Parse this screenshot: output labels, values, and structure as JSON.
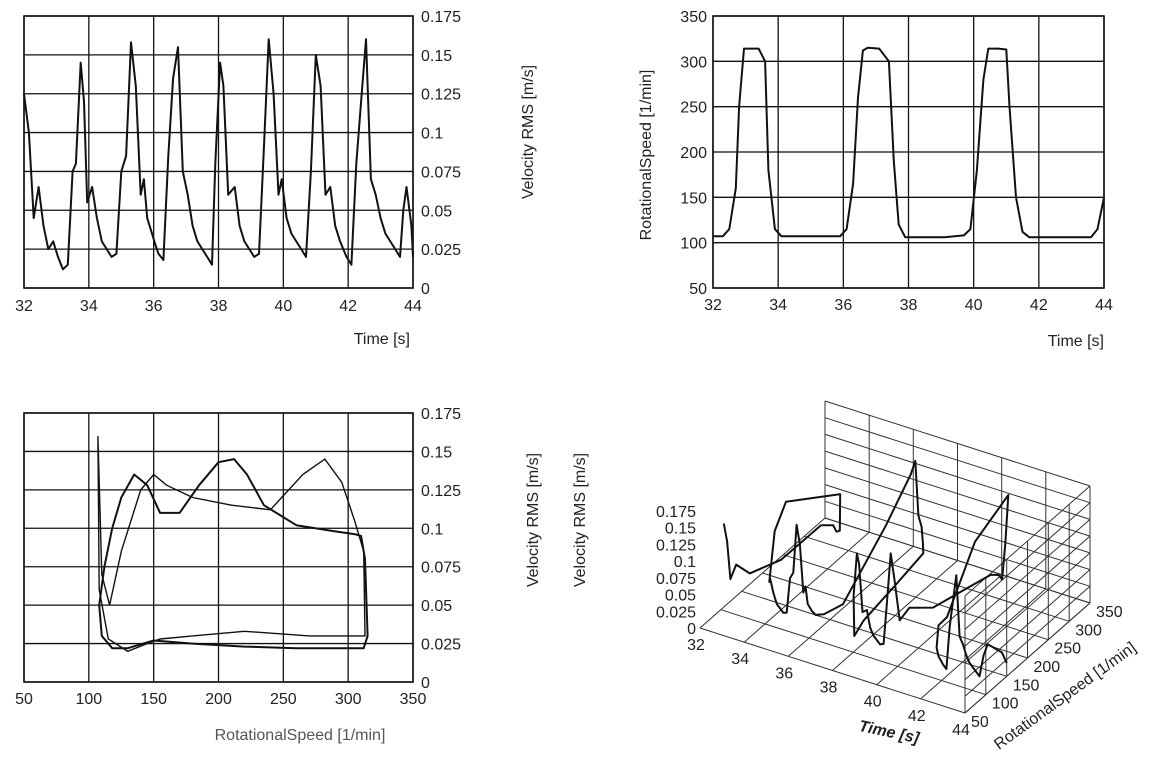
{
  "chart_data": [
    {
      "type": "line",
      "xlabel": "Time [s]",
      "ylabel": "Velocity RMS [m/s]",
      "xlim": [
        32,
        44
      ],
      "ylim": [
        0,
        0.175
      ],
      "xticks": [
        "32",
        "34",
        "36",
        "38",
        "40",
        "42",
        "44"
      ],
      "yticks": [
        "0",
        "0.025",
        "0.05",
        "0.075",
        "0.1",
        "0.125",
        "0.15",
        "0.175"
      ],
      "grid": true,
      "x": [
        32.0,
        32.15,
        32.3,
        32.45,
        32.6,
        32.75,
        32.9,
        33.05,
        33.2,
        33.35,
        33.5,
        33.6,
        33.75,
        33.85,
        33.95,
        34.1,
        34.25,
        34.4,
        34.55,
        34.7,
        34.85,
        35.0,
        35.15,
        35.3,
        35.45,
        35.6,
        35.7,
        35.8,
        35.95,
        36.05,
        36.15,
        36.3,
        36.45,
        36.6,
        36.75,
        36.9,
        37.05,
        37.2,
        37.35,
        37.5,
        37.65,
        37.8,
        37.9,
        38.05,
        38.15,
        38.3,
        38.5,
        38.65,
        38.8,
        38.95,
        39.1,
        39.25,
        39.4,
        39.55,
        39.7,
        39.85,
        39.95,
        40.1,
        40.25,
        40.4,
        40.55,
        40.7,
        40.85,
        41.0,
        41.15,
        41.3,
        41.45,
        41.6,
        41.75,
        41.85,
        41.95,
        42.1,
        42.25,
        42.4,
        42.55,
        42.7,
        42.85,
        43.0,
        43.15,
        43.3,
        43.45,
        43.6,
        43.7,
        43.8,
        43.95,
        44.0
      ],
      "y": [
        0.125,
        0.1,
        0.045,
        0.065,
        0.04,
        0.025,
        0.03,
        0.02,
        0.012,
        0.015,
        0.075,
        0.08,
        0.145,
        0.12,
        0.055,
        0.065,
        0.045,
        0.03,
        0.025,
        0.02,
        0.022,
        0.075,
        0.085,
        0.158,
        0.13,
        0.06,
        0.07,
        0.045,
        0.035,
        0.028,
        0.022,
        0.018,
        0.085,
        0.135,
        0.155,
        0.075,
        0.06,
        0.04,
        0.03,
        0.025,
        0.02,
        0.015,
        0.08,
        0.145,
        0.13,
        0.06,
        0.065,
        0.04,
        0.03,
        0.025,
        0.02,
        0.022,
        0.09,
        0.16,
        0.125,
        0.06,
        0.07,
        0.045,
        0.035,
        0.03,
        0.025,
        0.02,
        0.075,
        0.15,
        0.13,
        0.06,
        0.065,
        0.04,
        0.03,
        0.025,
        0.02,
        0.015,
        0.08,
        0.12,
        0.16,
        0.07,
        0.06,
        0.045,
        0.035,
        0.03,
        0.025,
        0.02,
        0.05,
        0.065,
        0.04,
        0.02
      ]
    },
    {
      "type": "line",
      "xlabel": "Time [s]",
      "ylabel": "RotationalSpeed [1/min]",
      "xlim": [
        32,
        44
      ],
      "ylim": [
        50,
        350
      ],
      "xticks": [
        "32",
        "34",
        "36",
        "38",
        "40",
        "42",
        "44"
      ],
      "yticks": [
        "50",
        "100",
        "150",
        "200",
        "250",
        "300",
        "350"
      ],
      "grid": true,
      "x": [
        32.0,
        32.3,
        32.5,
        32.7,
        32.8,
        32.95,
        33.1,
        33.4,
        33.6,
        33.7,
        33.9,
        34.1,
        35.0,
        35.9,
        36.1,
        36.3,
        36.45,
        36.6,
        36.75,
        37.1,
        37.4,
        37.55,
        37.7,
        37.9,
        38.1,
        39.1,
        39.7,
        39.9,
        40.1,
        40.3,
        40.45,
        40.75,
        41.0,
        41.1,
        41.3,
        41.5,
        41.7,
        42.8,
        43.6,
        43.8,
        44.0
      ],
      "y": [
        107,
        107,
        115,
        160,
        250,
        314,
        314,
        314,
        300,
        180,
        115,
        107,
        107,
        107,
        115,
        165,
        260,
        312,
        315,
        314,
        300,
        190,
        120,
        106,
        106,
        106,
        108,
        115,
        180,
        280,
        314,
        314,
        313,
        250,
        150,
        112,
        106,
        106,
        106,
        115,
        150
      ]
    },
    {
      "type": "line",
      "xlabel": "RotationalSpeed [1/min]",
      "ylabel": "Velocity RMS [m/s]",
      "xlim": [
        50,
        350
      ],
      "ylim": [
        0,
        0.175
      ],
      "xticks": [
        "50",
        "100",
        "150",
        "200",
        "250",
        "300",
        "350"
      ],
      "yticks": [
        "0",
        "0.025",
        "0.05",
        "0.075",
        "0.1",
        "0.125",
        "0.15",
        "0.175"
      ],
      "grid": true,
      "series": [
        {
          "x": [
            108,
            112,
            118,
            125,
            135,
            145,
            155,
            170,
            185,
            200,
            212,
            222,
            235,
            260,
            290,
            306,
            310,
            313,
            315,
            312,
            300,
            260,
            220,
            180,
            150,
            130,
            118,
            110,
            108
          ],
          "y": [
            0.05,
            0.075,
            0.1,
            0.12,
            0.135,
            0.128,
            0.11,
            0.11,
            0.128,
            0.143,
            0.145,
            0.135,
            0.115,
            0.102,
            0.098,
            0.096,
            0.095,
            0.08,
            0.03,
            0.022,
            0.022,
            0.022,
            0.023,
            0.025,
            0.027,
            0.022,
            0.022,
            0.03,
            0.05
          ]
        },
        {
          "x": [
            107,
            110,
            116,
            125,
            140,
            150,
            160,
            180,
            210,
            240,
            265,
            282,
            295,
            305,
            312,
            313,
            310,
            270,
            220,
            180,
            155,
            145,
            130,
            115,
            108,
            107
          ],
          "y": [
            0.16,
            0.07,
            0.05,
            0.085,
            0.125,
            0.135,
            0.128,
            0.12,
            0.115,
            0.112,
            0.135,
            0.145,
            0.13,
            0.105,
            0.085,
            0.03,
            0.03,
            0.03,
            0.033,
            0.03,
            0.028,
            0.025,
            0.02,
            0.028,
            0.06,
            0.16
          ]
        }
      ]
    },
    {
      "type": "line",
      "xlabel": "Time [s]",
      "ylabel": "Velocity RMS [m/s]",
      "zlabel": "RotationalSpeed [1/min]",
      "xticks": [
        "32",
        "34",
        "36",
        "38",
        "40",
        "42",
        "44"
      ],
      "yticks": [
        "50",
        "100",
        "150",
        "200",
        "250",
        "300",
        "350"
      ],
      "zticks": [
        "0",
        "0.025",
        "0.05",
        "0.075",
        "0.1",
        "0.125",
        "0.15",
        "0.175"
      ],
      "grid": true
    }
  ]
}
